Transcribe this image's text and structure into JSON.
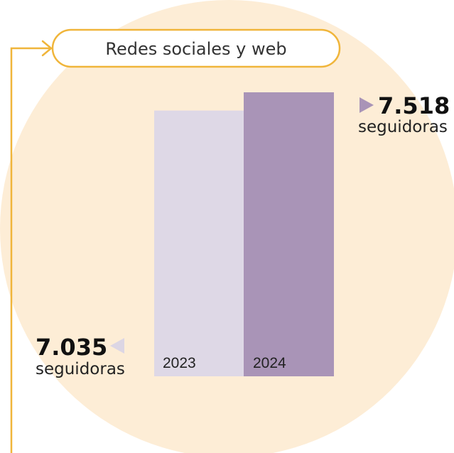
{
  "header": {
    "label": "Redes sociales y web"
  },
  "colors": {
    "background_circle": "#fdedd6",
    "accent_line": "#f0b53a",
    "bar_2023": "#ded8e6",
    "bar_2024": "#a994b7",
    "marker_2023": "#dcd6e4",
    "marker_2024": "#a994b7"
  },
  "chart_data": {
    "type": "bar",
    "categories": [
      "2023",
      "2024"
    ],
    "values": [
      7035,
      7518
    ],
    "ylim": [
      0,
      7518
    ],
    "grid": false,
    "labels": [
      {
        "category": "2023",
        "value_text": "7.035",
        "unit": "seguidoras",
        "placement": "left",
        "marker": "triangle-left-icon"
      },
      {
        "category": "2024",
        "value_text": "7.518",
        "unit": "seguidoras",
        "placement": "right",
        "marker": "triangle-right-icon"
      }
    ]
  }
}
